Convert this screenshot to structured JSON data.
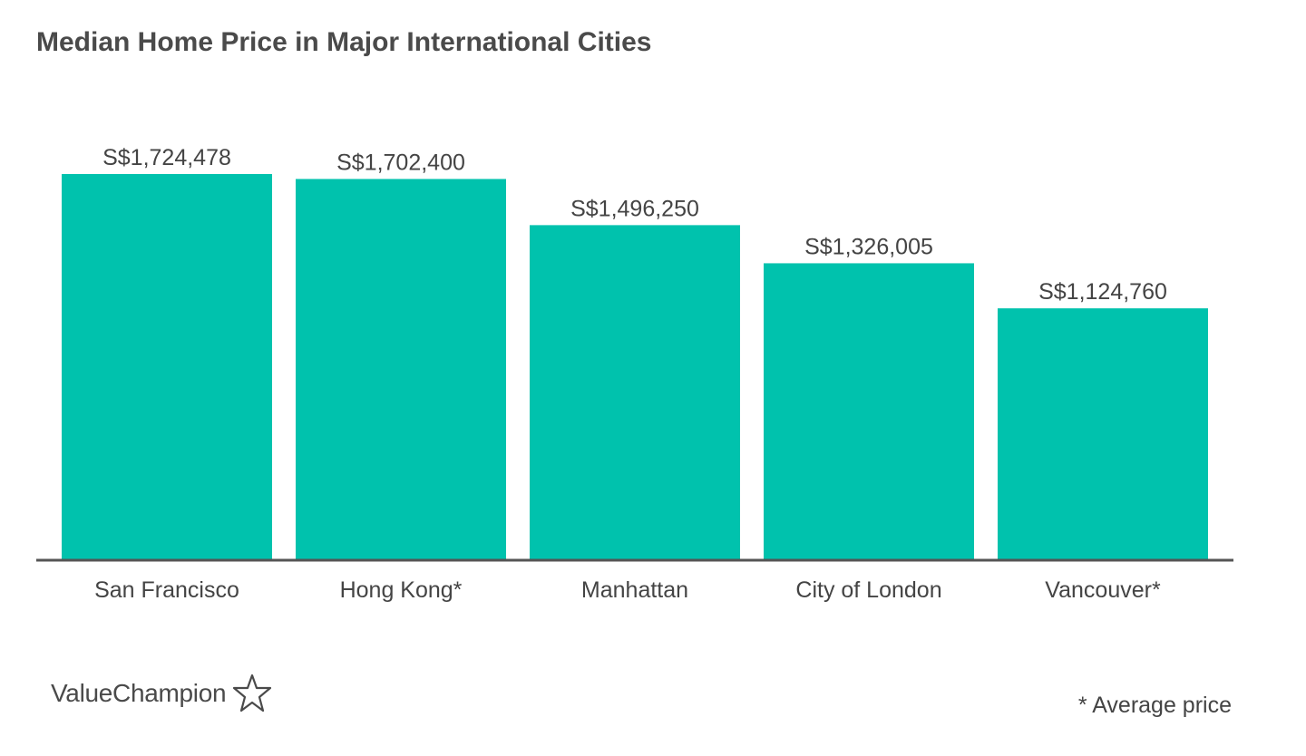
{
  "chart_data": {
    "type": "bar",
    "title": "Median Home Price in Major International Cities",
    "categories": [
      "San Francisco",
      "Hong Kong*",
      "Manhattan",
      "City of London",
      "Vancouver*"
    ],
    "values": [
      1724478,
      1702400,
      1496250,
      1326005,
      1124760
    ],
    "data_labels": [
      "S$1,724,478",
      "S$1,702,400",
      "S$1,496,250",
      "S$1,326,005",
      "S$1,124,760"
    ],
    "xlabel": "",
    "ylabel": "",
    "ylim": [
      0,
      1724478
    ],
    "grid": false,
    "legend": "none",
    "bar_color": "#00c2ad",
    "axis_color": "#555555"
  },
  "footnote": "* Average price",
  "brand": {
    "name": "ValueChampion",
    "icon": "star-outline-icon"
  }
}
